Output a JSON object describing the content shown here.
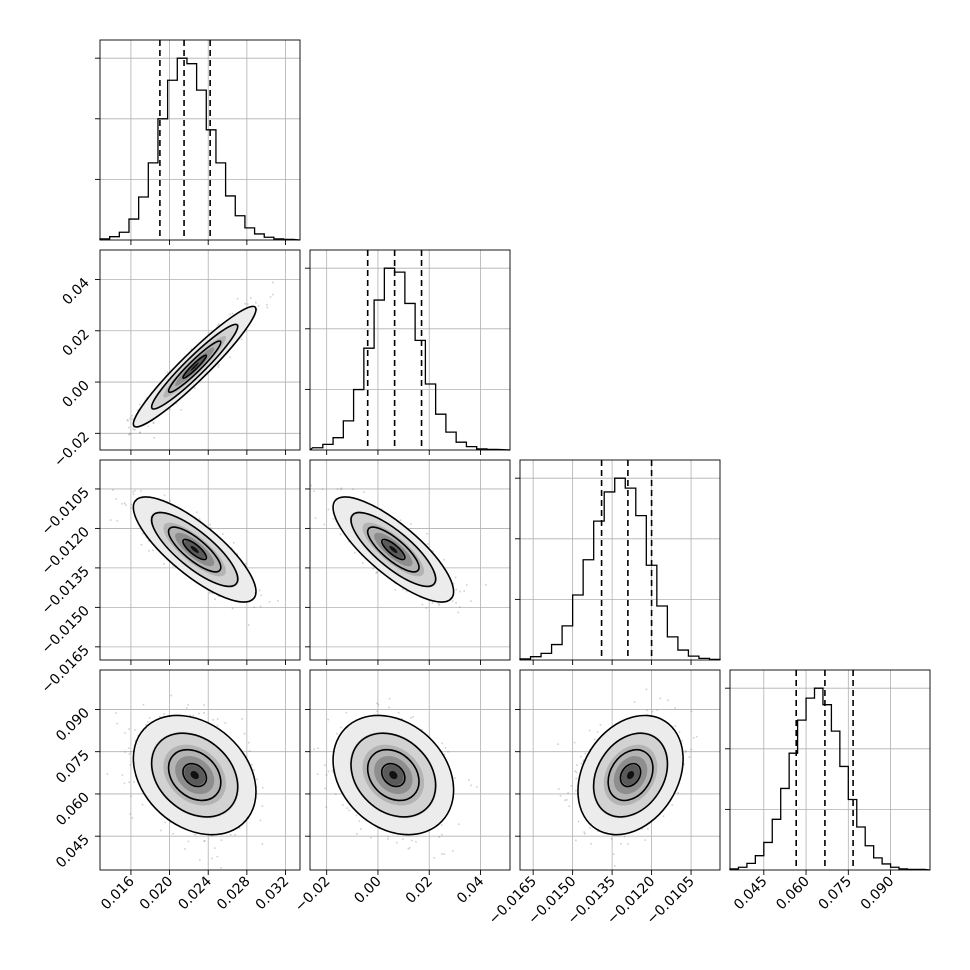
{
  "chart_data": {
    "type": "corner",
    "grid": true,
    "parameters": [
      {
        "range": [
          0.0128,
          0.0335
        ],
        "ticks": [
          0.016,
          0.02,
          0.024,
          0.028,
          0.032
        ],
        "tick_labels": [
          "0.016",
          "0.020",
          "0.024",
          "0.028",
          "0.032"
        ],
        "quantiles": [
          0.019,
          0.0215,
          0.0242
        ],
        "histogram_centers": [
          0.0133,
          0.0143,
          0.0153,
          0.0163,
          0.0173,
          0.0183,
          0.0193,
          0.0203,
          0.0213,
          0.0223,
          0.0233,
          0.0243,
          0.0253,
          0.0263,
          0.0273,
          0.0283,
          0.0293,
          0.0303,
          0.0313,
          0.0323
        ],
        "histogram_counts": [
          2,
          6,
          14,
          38,
          78,
          140,
          220,
          290,
          330,
          320,
          272,
          200,
          140,
          80,
          44,
          22,
          11,
          5,
          2,
          1
        ]
      },
      {
        "range": [
          -0.0265,
          0.0515
        ],
        "ticks": [
          -0.02,
          0.0,
          0.02,
          0.04
        ],
        "tick_labels": [
          "−0.02",
          "0.00",
          "0.02",
          "0.04"
        ],
        "quantiles": [
          -0.004,
          0.0065,
          0.017
        ],
        "histogram_centers": [
          -0.0235,
          -0.0195,
          -0.0155,
          -0.0115,
          -0.0075,
          -0.0035,
          0.0005,
          0.0045,
          0.0085,
          0.0125,
          0.0165,
          0.0205,
          0.0245,
          0.0285,
          0.0325,
          0.0365,
          0.0405,
          0.0445
        ],
        "histogram_counts": [
          4,
          10,
          22,
          52,
          108,
          182,
          268,
          325,
          318,
          262,
          196,
          118,
          64,
          32,
          14,
          6,
          2,
          1
        ]
      },
      {
        "range": [
          -0.017,
          -0.0094
        ],
        "ticks": [
          -0.0165,
          -0.015,
          -0.0135,
          -0.012,
          -0.0105
        ],
        "tick_labels": [
          "−0.0165",
          "−0.0150",
          "−0.0135",
          "−0.0120",
          "−0.0105"
        ],
        "quantiles": [
          -0.0139,
          -0.0129,
          -0.012
        ],
        "histogram_centers": [
          -0.0168,
          -0.0164,
          -0.016,
          -0.0156,
          -0.0152,
          -0.0148,
          -0.0144,
          -0.014,
          -0.0136,
          -0.0132,
          -0.0128,
          -0.0124,
          -0.012,
          -0.0116,
          -0.0112,
          -0.0108,
          -0.0104,
          -0.01,
          -0.0096
        ],
        "histogram_counts": [
          2,
          6,
          12,
          28,
          62,
          118,
          182,
          252,
          305,
          330,
          312,
          262,
          172,
          98,
          42,
          18,
          7,
          3,
          1
        ]
      },
      {
        "range": [
          0.033,
          0.104
        ],
        "ticks": [
          0.045,
          0.06,
          0.075,
          0.09
        ],
        "tick_labels": [
          "0.045",
          "0.060",
          "0.075",
          "0.090"
        ],
        "quantiles": [
          0.0565,
          0.0667,
          0.0767
        ],
        "histogram_centers": [
          0.0345,
          0.0375,
          0.0405,
          0.0435,
          0.0465,
          0.0495,
          0.0525,
          0.0555,
          0.0585,
          0.0615,
          0.0645,
          0.0675,
          0.0705,
          0.0735,
          0.0765,
          0.0795,
          0.0825,
          0.0855,
          0.0885,
          0.0915,
          0.0945,
          0.0975,
          0.1005
        ],
        "histogram_counts": [
          2,
          5,
          12,
          26,
          50,
          92,
          148,
          212,
          272,
          312,
          330,
          300,
          252,
          188,
          128,
          78,
          44,
          22,
          11,
          5,
          2,
          1,
          1
        ]
      }
    ],
    "pairs": [
      {
        "x": 0,
        "y": 1,
        "mean_x": 0.0226,
        "mean_y": 0.006,
        "std_x": 0.0027,
        "std_y": 0.01,
        "rho": 0.95
      },
      {
        "x": 0,
        "y": 2,
        "mean_x": 0.0226,
        "mean_y": -0.0128,
        "std_x": 0.0027,
        "std_y": 0.00085,
        "rho": -0.8
      },
      {
        "x": 1,
        "y": 2,
        "mean_x": 0.006,
        "mean_y": -0.0128,
        "std_x": 0.01,
        "std_y": 0.00085,
        "rho": -0.8
      },
      {
        "x": 0,
        "y": 3,
        "mean_x": 0.0226,
        "mean_y": 0.0667,
        "std_x": 0.0027,
        "std_y": 0.009,
        "rho": -0.28
      },
      {
        "x": 1,
        "y": 3,
        "mean_x": 0.006,
        "mean_y": 0.0667,
        "std_x": 0.01,
        "std_y": 0.009,
        "rho": -0.25
      },
      {
        "x": 2,
        "y": 3,
        "mean_x": -0.0128,
        "mean_y": 0.0667,
        "std_x": 0.00085,
        "std_y": 0.009,
        "rho": 0.27
      }
    ]
  }
}
